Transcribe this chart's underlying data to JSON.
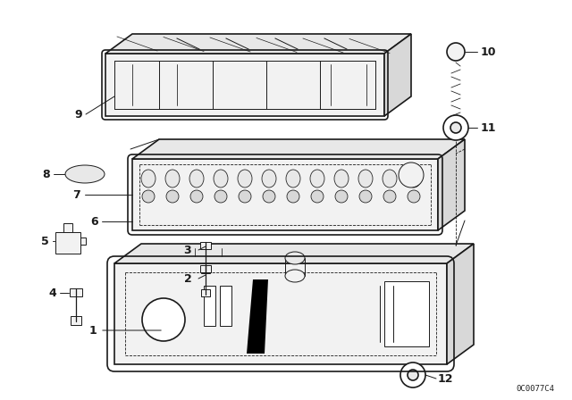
{
  "bg_color": "#ffffff",
  "line_color": "#1a1a1a",
  "fig_width": 6.4,
  "fig_height": 4.48,
  "dpi": 100,
  "watermark": "0C0077C4",
  "lw_main": 1.2,
  "lw_thin": 0.7,
  "lw_dash": 0.6
}
